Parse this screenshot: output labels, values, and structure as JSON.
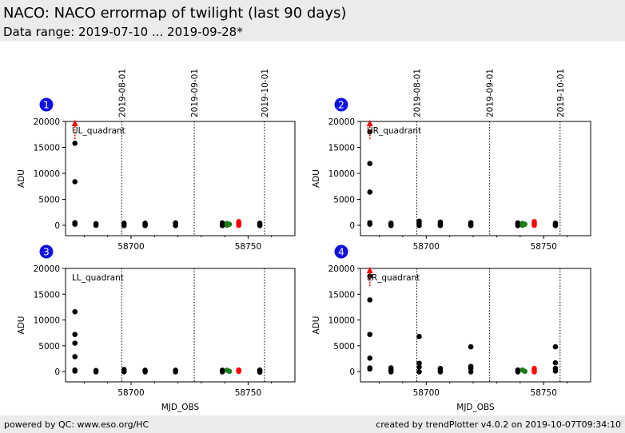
{
  "header": {
    "title": "NACO: NACO errormap of twilight (last 90 days)",
    "subtitle": "Data range: 2019-07-10 ... 2019-09-28*"
  },
  "footer": {
    "left": "powered by QC: www.eso.org/HC",
    "right": "created by trendPlotter v4.0.2 on 2019-10-07T09:34:10"
  },
  "colors": {
    "header_bg": "#ebebeb",
    "badge": "#1010e0",
    "normal_point": "#000000",
    "green_point": "#1a7f1a",
    "red_point": "#ff0000"
  },
  "chart_data": [
    {
      "type": "scatter",
      "panel_number": "1",
      "quadrant_label": "UL_quadrant",
      "xlabel": "",
      "ylabel": "ADU",
      "xlim": [
        58672,
        58770
      ],
      "ylim": [
        -2000,
        20000
      ],
      "x_ticks": [
        58700,
        58750
      ],
      "y_ticks": [
        0,
        5000,
        10000,
        15000,
        20000
      ],
      "date_lines": [
        {
          "x": 58696,
          "label": "2019-08-01"
        },
        {
          "x": 58727,
          "label": "2019-09-01"
        },
        {
          "x": 58757,
          "label": "2019-10-01"
        }
      ],
      "upper_arrows": [
        58676
      ],
      "points": [
        {
          "x": 58676,
          "y": 15800,
          "c": "black"
        },
        {
          "x": 58676,
          "y": 8400,
          "c": "black"
        },
        {
          "x": 58676,
          "y": 500,
          "c": "black"
        },
        {
          "x": 58676,
          "y": 200,
          "c": "black"
        },
        {
          "x": 58685,
          "y": 300,
          "c": "black"
        },
        {
          "x": 58685,
          "y": 0,
          "c": "black"
        },
        {
          "x": 58697,
          "y": 400,
          "c": "black"
        },
        {
          "x": 58697,
          "y": 150,
          "c": "black"
        },
        {
          "x": 58697,
          "y": -50,
          "c": "black"
        },
        {
          "x": 58706,
          "y": 400,
          "c": "black"
        },
        {
          "x": 58706,
          "y": 100,
          "c": "black"
        },
        {
          "x": 58706,
          "y": -50,
          "c": "black"
        },
        {
          "x": 58719,
          "y": 450,
          "c": "black"
        },
        {
          "x": 58719,
          "y": 150,
          "c": "black"
        },
        {
          "x": 58719,
          "y": -50,
          "c": "black"
        },
        {
          "x": 58739,
          "y": 450,
          "c": "black"
        },
        {
          "x": 58739,
          "y": 150,
          "c": "black"
        },
        {
          "x": 58739,
          "y": -50,
          "c": "black"
        },
        {
          "x": 58741,
          "y": 350,
          "c": "green"
        },
        {
          "x": 58742,
          "y": 200,
          "c": "green"
        },
        {
          "x": 58741,
          "y": 0,
          "c": "green"
        },
        {
          "x": 58746,
          "y": 700,
          "c": "red"
        },
        {
          "x": 58746,
          "y": 350,
          "c": "red"
        },
        {
          "x": 58746,
          "y": 0,
          "c": "red"
        },
        {
          "x": 58755,
          "y": 400,
          "c": "black"
        },
        {
          "x": 58755,
          "y": 150,
          "c": "black"
        },
        {
          "x": 58755,
          "y": -50,
          "c": "black"
        }
      ]
    },
    {
      "type": "scatter",
      "panel_number": "2",
      "quadrant_label": "UR_quadrant",
      "xlabel": "",
      "ylabel": "ADU",
      "xlim": [
        58672,
        58770
      ],
      "ylim": [
        -2000,
        20000
      ],
      "x_ticks": [
        58700,
        58750
      ],
      "y_ticks": [
        0,
        5000,
        10000,
        15000,
        20000
      ],
      "date_lines": [
        {
          "x": 58696,
          "label": "2019-08-01"
        },
        {
          "x": 58727,
          "label": "2019-09-01"
        },
        {
          "x": 58757,
          "label": "2019-10-01"
        }
      ],
      "upper_arrows": [
        58676
      ],
      "points": [
        {
          "x": 58676,
          "y": 18000,
          "c": "black"
        },
        {
          "x": 58676,
          "y": 11900,
          "c": "black"
        },
        {
          "x": 58676,
          "y": 6400,
          "c": "black"
        },
        {
          "x": 58676,
          "y": 500,
          "c": "black"
        },
        {
          "x": 58676,
          "y": 200,
          "c": "black"
        },
        {
          "x": 58685,
          "y": 400,
          "c": "black"
        },
        {
          "x": 58685,
          "y": 100,
          "c": "black"
        },
        {
          "x": 58685,
          "y": -50,
          "c": "black"
        },
        {
          "x": 58697,
          "y": 800,
          "c": "black"
        },
        {
          "x": 58697,
          "y": 400,
          "c": "black"
        },
        {
          "x": 58697,
          "y": -50,
          "c": "black"
        },
        {
          "x": 58706,
          "y": 600,
          "c": "black"
        },
        {
          "x": 58706,
          "y": 200,
          "c": "black"
        },
        {
          "x": 58706,
          "y": -50,
          "c": "black"
        },
        {
          "x": 58719,
          "y": 500,
          "c": "black"
        },
        {
          "x": 58719,
          "y": 150,
          "c": "black"
        },
        {
          "x": 58719,
          "y": -50,
          "c": "black"
        },
        {
          "x": 58739,
          "y": 450,
          "c": "black"
        },
        {
          "x": 58739,
          "y": 150,
          "c": "black"
        },
        {
          "x": 58739,
          "y": -50,
          "c": "black"
        },
        {
          "x": 58741,
          "y": 350,
          "c": "green"
        },
        {
          "x": 58742,
          "y": 200,
          "c": "green"
        },
        {
          "x": 58741,
          "y": 0,
          "c": "green"
        },
        {
          "x": 58746,
          "y": 700,
          "c": "red"
        },
        {
          "x": 58746,
          "y": 300,
          "c": "red"
        },
        {
          "x": 58746,
          "y": 0,
          "c": "red"
        },
        {
          "x": 58755,
          "y": 400,
          "c": "black"
        },
        {
          "x": 58755,
          "y": 150,
          "c": "black"
        },
        {
          "x": 58755,
          "y": -50,
          "c": "black"
        }
      ]
    },
    {
      "type": "scatter",
      "panel_number": "3",
      "quadrant_label": "LL_quadrant",
      "xlabel": "MJD_OBS",
      "ylabel": "ADU",
      "xlim": [
        58672,
        58770
      ],
      "ylim": [
        -2000,
        20000
      ],
      "x_ticks": [
        58700,
        58750
      ],
      "y_ticks": [
        0,
        5000,
        10000,
        15000,
        20000
      ],
      "date_lines": [
        {
          "x": 58696,
          "label": ""
        },
        {
          "x": 58727,
          "label": ""
        },
        {
          "x": 58757,
          "label": ""
        }
      ],
      "upper_arrows": [],
      "points": [
        {
          "x": 58676,
          "y": 11600,
          "c": "black"
        },
        {
          "x": 58676,
          "y": 7200,
          "c": "black"
        },
        {
          "x": 58676,
          "y": 5500,
          "c": "black"
        },
        {
          "x": 58676,
          "y": 2900,
          "c": "black"
        },
        {
          "x": 58676,
          "y": 300,
          "c": "black"
        },
        {
          "x": 58676,
          "y": 100,
          "c": "black"
        },
        {
          "x": 58685,
          "y": 200,
          "c": "black"
        },
        {
          "x": 58685,
          "y": -50,
          "c": "black"
        },
        {
          "x": 58697,
          "y": 400,
          "c": "black"
        },
        {
          "x": 58697,
          "y": 100,
          "c": "black"
        },
        {
          "x": 58697,
          "y": -50,
          "c": "black"
        },
        {
          "x": 58706,
          "y": 250,
          "c": "black"
        },
        {
          "x": 58706,
          "y": -50,
          "c": "black"
        },
        {
          "x": 58719,
          "y": 250,
          "c": "black"
        },
        {
          "x": 58719,
          "y": -50,
          "c": "black"
        },
        {
          "x": 58739,
          "y": 250,
          "c": "black"
        },
        {
          "x": 58739,
          "y": -50,
          "c": "black"
        },
        {
          "x": 58741,
          "y": 250,
          "c": "green"
        },
        {
          "x": 58742,
          "y": 50,
          "c": "green"
        },
        {
          "x": 58746,
          "y": 300,
          "c": "red"
        },
        {
          "x": 58746,
          "y": 50,
          "c": "red"
        },
        {
          "x": 58755,
          "y": 300,
          "c": "black"
        },
        {
          "x": 58755,
          "y": 50,
          "c": "black"
        },
        {
          "x": 58755,
          "y": -100,
          "c": "black"
        }
      ]
    },
    {
      "type": "scatter",
      "panel_number": "4",
      "quadrant_label": "LR_quadrant",
      "xlabel": "MJD_OBS",
      "ylabel": "ADU",
      "xlim": [
        58672,
        58770
      ],
      "ylim": [
        -2000,
        20000
      ],
      "x_ticks": [
        58700,
        58750
      ],
      "y_ticks": [
        0,
        5000,
        10000,
        15000,
        20000
      ],
      "date_lines": [
        {
          "x": 58696,
          "label": ""
        },
        {
          "x": 58727,
          "label": ""
        },
        {
          "x": 58757,
          "label": ""
        }
      ],
      "upper_arrows": [
        58676
      ],
      "points": [
        {
          "x": 58676,
          "y": 18500,
          "c": "black"
        },
        {
          "x": 58676,
          "y": 13900,
          "c": "black"
        },
        {
          "x": 58676,
          "y": 7200,
          "c": "black"
        },
        {
          "x": 58676,
          "y": 2600,
          "c": "black"
        },
        {
          "x": 58676,
          "y": 700,
          "c": "black"
        },
        {
          "x": 58676,
          "y": 500,
          "c": "black"
        },
        {
          "x": 58685,
          "y": 700,
          "c": "black"
        },
        {
          "x": 58685,
          "y": 300,
          "c": "black"
        },
        {
          "x": 58685,
          "y": -50,
          "c": "black"
        },
        {
          "x": 58697,
          "y": 6800,
          "c": "black"
        },
        {
          "x": 58697,
          "y": 1600,
          "c": "black"
        },
        {
          "x": 58697,
          "y": 900,
          "c": "black"
        },
        {
          "x": 58697,
          "y": -50,
          "c": "black"
        },
        {
          "x": 58706,
          "y": 600,
          "c": "black"
        },
        {
          "x": 58706,
          "y": 200,
          "c": "black"
        },
        {
          "x": 58706,
          "y": -50,
          "c": "black"
        },
        {
          "x": 58719,
          "y": 4800,
          "c": "black"
        },
        {
          "x": 58719,
          "y": 1000,
          "c": "black"
        },
        {
          "x": 58719,
          "y": 600,
          "c": "black"
        },
        {
          "x": 58719,
          "y": -50,
          "c": "black"
        },
        {
          "x": 58739,
          "y": 300,
          "c": "black"
        },
        {
          "x": 58739,
          "y": -50,
          "c": "black"
        },
        {
          "x": 58741,
          "y": 300,
          "c": "green"
        },
        {
          "x": 58742,
          "y": 50,
          "c": "green"
        },
        {
          "x": 58746,
          "y": 600,
          "c": "red"
        },
        {
          "x": 58746,
          "y": 200,
          "c": "red"
        },
        {
          "x": 58746,
          "y": -50,
          "c": "red"
        },
        {
          "x": 58755,
          "y": 4800,
          "c": "black"
        },
        {
          "x": 58755,
          "y": 1700,
          "c": "black"
        },
        {
          "x": 58755,
          "y": 600,
          "c": "black"
        },
        {
          "x": 58755,
          "y": 100,
          "c": "black"
        }
      ]
    }
  ]
}
